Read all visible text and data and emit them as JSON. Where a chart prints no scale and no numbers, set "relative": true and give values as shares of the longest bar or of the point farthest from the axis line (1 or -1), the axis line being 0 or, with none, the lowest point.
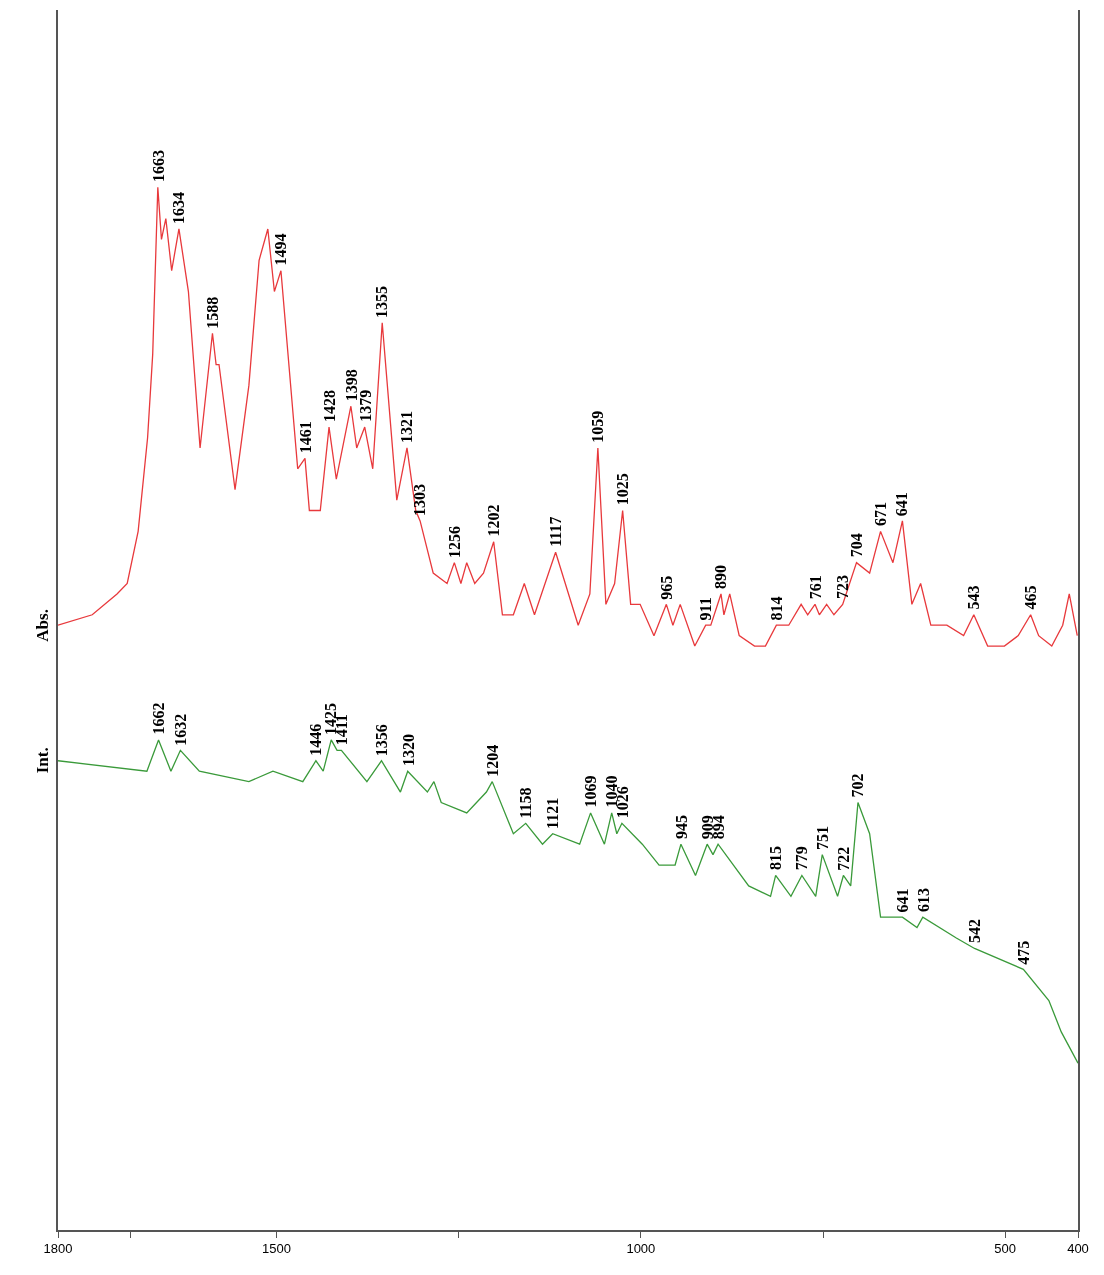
{
  "chart_data": {
    "type": "line",
    "relative": true,
    "xlim": [
      1800,
      400
    ],
    "xticks": [
      1800,
      {
        "value": 1700,
        "label": null
      },
      1500,
      {
        "value": 1250,
        "label": null
      },
      1000,
      {
        "value": 750,
        "label": null
      },
      500,
      400
    ],
    "legend": false,
    "marker": "none",
    "line_style": "solid",
    "series": [
      {
        "name": "Abs.",
        "color": "#e8393c",
        "x": [
          1800,
          1753,
          1719,
          1705,
          1690,
          1677,
          1670,
          1663,
          1658,
          1652,
          1644,
          1634,
          1621,
          1605,
          1588,
          1583,
          1579,
          1557,
          1538,
          1524,
          1512,
          1503,
          1494,
          1471,
          1461,
          1455,
          1440,
          1428,
          1418,
          1398,
          1390,
          1379,
          1368,
          1355,
          1335,
          1321,
          1309,
          1303,
          1285,
          1266,
          1256,
          1247,
          1239,
          1228,
          1216,
          1202,
          1190,
          1175,
          1160,
          1146,
          1117,
          1086,
          1070,
          1059,
          1048,
          1036,
          1025,
          1014,
          1001,
          982,
          965,
          956,
          946,
          926,
          911,
          904,
          890,
          886,
          878,
          865,
          844,
          829,
          814,
          797,
          780,
          771,
          761,
          755,
          745,
          735,
          723,
          704,
          686,
          671,
          654,
          641,
          628,
          616,
          602,
          580,
          557,
          543,
          524,
          501,
          482,
          465,
          454,
          436,
          421,
          412,
          401
        ],
        "values": [
          0.58,
          0.59,
          0.61,
          0.62,
          0.67,
          0.76,
          0.84,
          1.0,
          0.95,
          0.97,
          0.92,
          0.96,
          0.9,
          0.75,
          0.86,
          0.83,
          0.83,
          0.71,
          0.81,
          0.93,
          0.96,
          0.9,
          0.92,
          0.73,
          0.74,
          0.69,
          0.69,
          0.77,
          0.72,
          0.79,
          0.75,
          0.77,
          0.73,
          0.87,
          0.7,
          0.75,
          0.69,
          0.68,
          0.63,
          0.62,
          0.64,
          0.62,
          0.64,
          0.62,
          0.63,
          0.66,
          0.59,
          0.59,
          0.62,
          0.59,
          0.65,
          0.58,
          0.61,
          0.75,
          0.6,
          0.62,
          0.69,
          0.6,
          0.6,
          0.57,
          0.6,
          0.58,
          0.6,
          0.56,
          0.58,
          0.58,
          0.61,
          0.59,
          0.61,
          0.57,
          0.56,
          0.56,
          0.58,
          0.58,
          0.6,
          0.59,
          0.6,
          0.59,
          0.6,
          0.59,
          0.6,
          0.64,
          0.63,
          0.67,
          0.64,
          0.68,
          0.6,
          0.62,
          0.58,
          0.58,
          0.57,
          0.59,
          0.56,
          0.56,
          0.57,
          0.59,
          0.57,
          0.56,
          0.58,
          0.61,
          0.57
        ]
      },
      {
        "name": "Int.",
        "color": "#3a9a3a",
        "x": [
          1800,
          1678,
          1662,
          1645,
          1632,
          1606,
          1538,
          1505,
          1464,
          1446,
          1436,
          1425,
          1417,
          1411,
          1376,
          1356,
          1330,
          1320,
          1293,
          1284,
          1274,
          1239,
          1212,
          1204,
          1175,
          1158,
          1135,
          1121,
          1084,
          1069,
          1050,
          1040,
          1033,
          1026,
          998,
          975,
          953,
          945,
          925,
          909,
          901,
          894,
          852,
          822,
          815,
          794,
          779,
          760,
          751,
          730,
          722,
          712,
          702,
          686,
          671,
          648,
          641,
          621,
          613,
          567,
          542,
          475,
          440,
          423,
          400
        ],
        "values": [
          0.45,
          0.44,
          0.47,
          0.44,
          0.46,
          0.44,
          0.43,
          0.44,
          0.43,
          0.45,
          0.44,
          0.47,
          0.46,
          0.46,
          0.43,
          0.45,
          0.42,
          0.44,
          0.42,
          0.43,
          0.41,
          0.4,
          0.42,
          0.43,
          0.38,
          0.39,
          0.37,
          0.38,
          0.37,
          0.4,
          0.37,
          0.4,
          0.38,
          0.39,
          0.37,
          0.35,
          0.35,
          0.37,
          0.34,
          0.37,
          0.36,
          0.37,
          0.33,
          0.32,
          0.34,
          0.32,
          0.34,
          0.32,
          0.36,
          0.32,
          0.34,
          0.33,
          0.41,
          0.38,
          0.3,
          0.3,
          0.3,
          0.29,
          0.3,
          0.28,
          0.27,
          0.25,
          0.22,
          0.19,
          0.16
        ]
      }
    ],
    "annotations": [
      {
        "text": "1663",
        "x": 1663,
        "y": 1.0
      },
      {
        "text": "1634",
        "x": 1634,
        "y": 0.96
      },
      {
        "text": "1588",
        "x": 1588,
        "y": 0.86
      },
      {
        "text": "1494",
        "x": 1494,
        "y": 0.92
      },
      {
        "text": "1461",
        "x": 1461,
        "y": 0.74
      },
      {
        "text": "1428",
        "x": 1428,
        "y": 0.77
      },
      {
        "text": "1398",
        "x": 1398,
        "y": 0.79
      },
      {
        "text": "1379",
        "x": 1379,
        "y": 0.77
      },
      {
        "text": "1355",
        "x": 1355,
        "y": 0.87
      },
      {
        "text": "1321",
        "x": 1321,
        "y": 0.75
      },
      {
        "text": "1303",
        "x": 1303,
        "y": 0.68
      },
      {
        "text": "1256",
        "x": 1256,
        "y": 0.64
      },
      {
        "text": "1202",
        "x": 1202,
        "y": 0.66
      },
      {
        "text": "1117",
        "x": 1117,
        "y": 0.65
      },
      {
        "text": "1059",
        "x": 1059,
        "y": 0.75
      },
      {
        "text": "1025",
        "x": 1025,
        "y": 0.69
      },
      {
        "text": "965",
        "x": 965,
        "y": 0.6
      },
      {
        "text": "911",
        "x": 911,
        "y": 0.58
      },
      {
        "text": "890",
        "x": 890,
        "y": 0.61
      },
      {
        "text": "814",
        "x": 814,
        "y": 0.58
      },
      {
        "text": "761",
        "x": 761,
        "y": 0.6
      },
      {
        "text": "723",
        "x": 723,
        "y": 0.6
      },
      {
        "text": "704",
        "x": 704,
        "y": 0.64
      },
      {
        "text": "671",
        "x": 671,
        "y": 0.67
      },
      {
        "text": "641",
        "x": 641,
        "y": 0.68
      },
      {
        "text": "543",
        "x": 543,
        "y": 0.59
      },
      {
        "text": "465",
        "x": 465,
        "y": 0.59
      },
      {
        "text": "1662",
        "x": 1662,
        "y": 0.47
      },
      {
        "text": "1632",
        "x": 1632,
        "y": 0.46
      },
      {
        "text": "1446",
        "x": 1446,
        "y": 0.45
      },
      {
        "text": "1425",
        "x": 1425,
        "y": 0.47
      },
      {
        "text": "1411",
        "x": 1411,
        "y": 0.46
      },
      {
        "text": "1356",
        "x": 1356,
        "y": 0.45
      },
      {
        "text": "1320",
        "x": 1320,
        "y": 0.44
      },
      {
        "text": "1204",
        "x": 1204,
        "y": 0.43
      },
      {
        "text": "1158",
        "x": 1158,
        "y": 0.39
      },
      {
        "text": "1121",
        "x": 1121,
        "y": 0.38
      },
      {
        "text": "1069",
        "x": 1069,
        "y": 0.4
      },
      {
        "text": "1040",
        "x": 1040,
        "y": 0.4
      },
      {
        "text": "1026",
        "x": 1026,
        "y": 0.39
      },
      {
        "text": "945",
        "x": 945,
        "y": 0.37
      },
      {
        "text": "909",
        "x": 909,
        "y": 0.37
      },
      {
        "text": "894",
        "x": 894,
        "y": 0.37
      },
      {
        "text": "815",
        "x": 815,
        "y": 0.34
      },
      {
        "text": "779",
        "x": 779,
        "y": 0.34
      },
      {
        "text": "751",
        "x": 751,
        "y": 0.36
      },
      {
        "text": "722",
        "x": 722,
        "y": 0.34
      },
      {
        "text": "702",
        "x": 702,
        "y": 0.41
      },
      {
        "text": "641",
        "x": 641,
        "y": 0.3
      },
      {
        "text": "613",
        "x": 613,
        "y": 0.3
      },
      {
        "text": "542",
        "x": 542,
        "y": 0.27
      },
      {
        "text": "475",
        "x": 475,
        "y": 0.25
      }
    ]
  }
}
